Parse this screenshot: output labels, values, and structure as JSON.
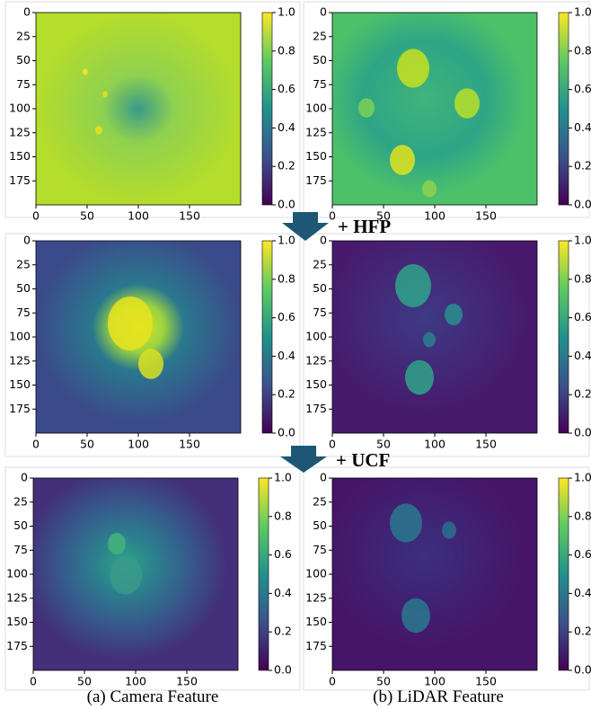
{
  "axes": {
    "lim": [
      0,
      200
    ],
    "xticks": [
      0,
      50,
      100,
      150
    ],
    "yticks": [
      0,
      25,
      50,
      75,
      100,
      125,
      150,
      175
    ],
    "colorbar_lim": [
      0,
      1
    ],
    "colorbar_ticks": [
      {
        "value": 0,
        "label": "0.0"
      },
      {
        "value": 0.2,
        "label": "0.2"
      },
      {
        "value": 0.4,
        "label": "0.4"
      },
      {
        "value": 0.6,
        "label": "0.6"
      },
      {
        "value": 0.8,
        "label": "0.8"
      },
      {
        "value": 1,
        "label": "1.0"
      }
    ]
  },
  "steps": [
    "+ HFP",
    "+ UCF"
  ],
  "captions": [
    "(a) Camera Feature",
    "(b) LiDAR Feature"
  ]
}
